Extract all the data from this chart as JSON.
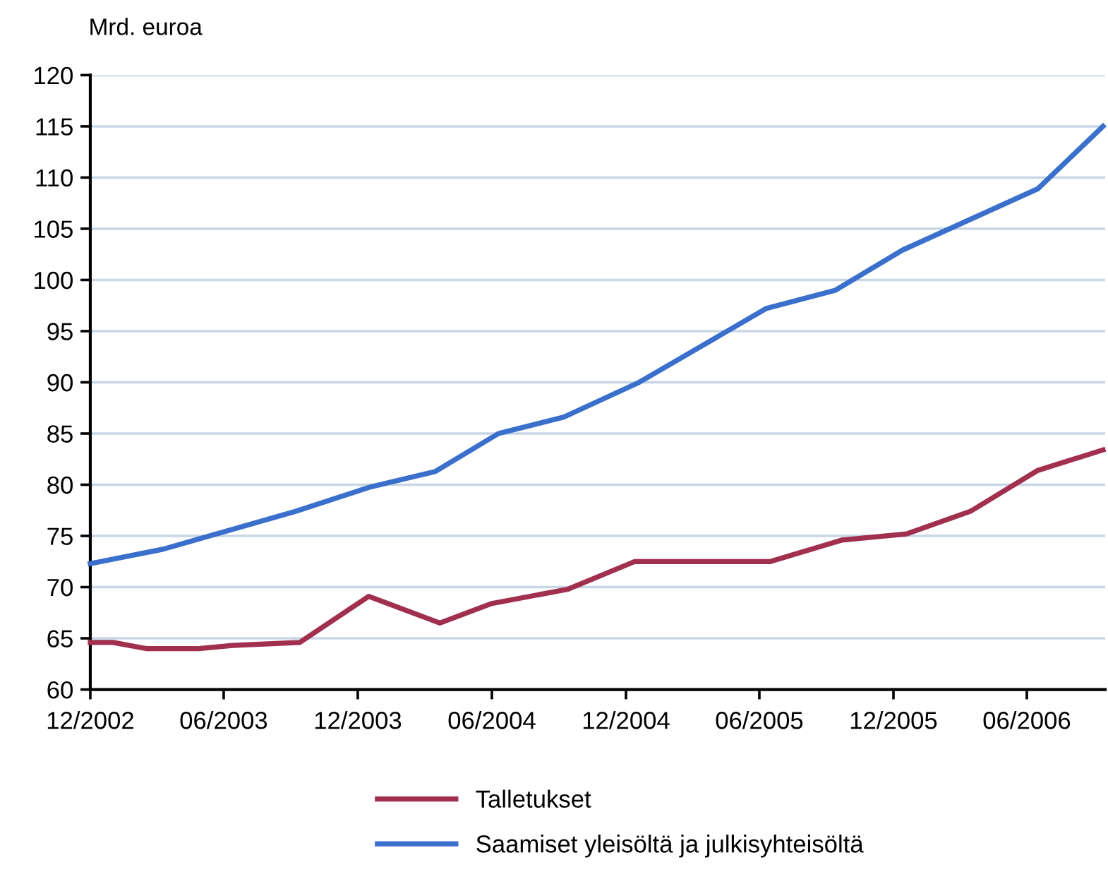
{
  "chart_data": {
    "type": "line",
    "ylabel": "Mrd. euroa",
    "xlim": [
      "2002-12-01",
      "2006-09-16"
    ],
    "xticks": [
      {
        "value": "2002-12-01",
        "label": "12/2002"
      },
      {
        "value": "2003-06-01",
        "label": "06/2003"
      },
      {
        "value": "2003-12-01",
        "label": "12/2003"
      },
      {
        "value": "2004-06-01",
        "label": "06/2004"
      },
      {
        "value": "2004-12-01",
        "label": "12/2004"
      },
      {
        "value": "2005-06-01",
        "label": "06/2005"
      },
      {
        "value": "2005-12-01",
        "label": "12/2005"
      },
      {
        "value": "2006-06-01",
        "label": "06/2006"
      }
    ],
    "ylim": [
      60,
      120
    ],
    "yticks": [
      60,
      65,
      70,
      75,
      80,
      85,
      90,
      95,
      100,
      105,
      110,
      115,
      120
    ],
    "grid": "y",
    "legend": "bottom",
    "marker": "none",
    "line_style": "solid",
    "series": [
      {
        "name": "Talletukset",
        "color": "#a0304e",
        "x": [
          "2002-12-01",
          "2003-01-01",
          "2003-02-15",
          "2003-04-28",
          "2003-06-13",
          "2003-09-13",
          "2003-12-16",
          "2004-03-22",
          "2004-06-01",
          "2004-09-13",
          "2004-12-13",
          "2005-06-16",
          "2005-09-22",
          "2005-12-19",
          "2006-03-16",
          "2006-06-16",
          "2006-09-13"
        ],
        "values": [
          64.6,
          64.6,
          64.0,
          64.0,
          64.3,
          64.6,
          69.1,
          66.5,
          68.4,
          69.8,
          72.5,
          72.5,
          74.6,
          75.2,
          77.4,
          81.4,
          83.4
        ]
      },
      {
        "name": "Saamiset yleisöltä ja julkisyhteisöltä",
        "color": "#3a70cc",
        "x": [
          "2002-12-01",
          "2003-03-10",
          "2003-09-07",
          "2003-12-19",
          "2004-03-16",
          "2004-06-10",
          "2004-09-07",
          "2004-12-19",
          "2005-06-10",
          "2005-09-13",
          "2005-12-13",
          "2006-06-16",
          "2006-09-13"
        ],
        "values": [
          72.3,
          73.7,
          77.4,
          79.8,
          81.3,
          85.0,
          86.6,
          90.0,
          97.2,
          99.0,
          102.9,
          108.9,
          115.0
        ]
      }
    ]
  }
}
